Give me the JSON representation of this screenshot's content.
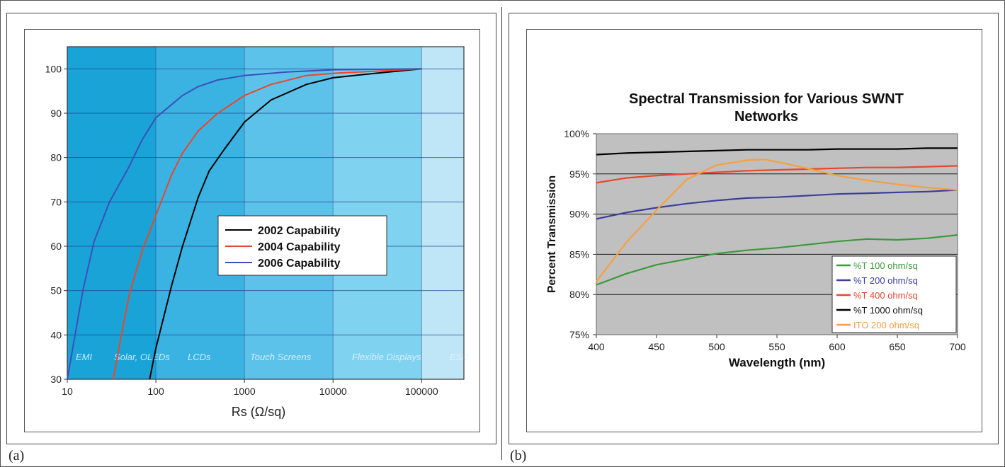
{
  "captions": {
    "a": "(a)",
    "b": "(b)"
  },
  "chart_data": [
    {
      "type": "line",
      "title": "",
      "xlabel": "Rs (Ω/sq)",
      "ylabel": "",
      "xscale": "log",
      "xlim": [
        10,
        300000
      ],
      "ylim": [
        30,
        105
      ],
      "xticks": [
        10,
        100,
        1000,
        10000,
        100000
      ],
      "xtick_labels": [
        "10",
        "100",
        "1000",
        "10000",
        "100000"
      ],
      "yticks": [
        30,
        40,
        50,
        60,
        70,
        80,
        90,
        100
      ],
      "ytick_labels": [
        "30",
        "40",
        "50",
        "60",
        "70",
        "80",
        "90",
        "100"
      ],
      "legend_position": "center",
      "bands": [
        {
          "label": "EMI",
          "from": 10,
          "to": 100,
          "color": "#1aa3d6"
        },
        {
          "label": "Solar, OLEDs",
          "from": 10,
          "to": 100,
          "color": "#1aa3d6"
        },
        {
          "label": "LCDs",
          "from": 100,
          "to": 1000,
          "color": "#3bb3e2"
        },
        {
          "label": "Touch Screens",
          "from": 1000,
          "to": 10000,
          "color": "#5cc2ea"
        },
        {
          "label": "Flexible Displays",
          "from": 10000,
          "to": 100000,
          "color": "#80d2f1"
        },
        {
          "label": "ESD",
          "from": 100000,
          "to": 300000,
          "color": "#bfe6f6"
        }
      ],
      "series": [
        {
          "name": "2002 Capability",
          "color": "#000000",
          "x": [
            85,
            100,
            150,
            200,
            300,
            400,
            600,
            1000,
            2000,
            5000,
            10000,
            30000,
            100000
          ],
          "y": [
            30,
            37,
            51,
            60,
            71,
            77,
            82,
            88,
            93,
            96.5,
            98,
            99,
            100
          ]
        },
        {
          "name": "2004 Capability",
          "color": "#e8472c",
          "x": [
            33,
            40,
            50,
            70,
            100,
            150,
            200,
            300,
            500,
            1000,
            2000,
            5000,
            10000,
            100000
          ],
          "y": [
            30,
            39,
            49,
            59,
            67,
            76,
            81,
            86,
            90,
            94,
            96.5,
            98.5,
            99,
            100
          ]
        },
        {
          "name": "2006 Capability",
          "color": "#3d4fb8",
          "x": [
            10,
            15,
            20,
            30,
            50,
            70,
            100,
            200,
            300,
            500,
            1000,
            3000,
            10000,
            100000
          ],
          "y": [
            30,
            50,
            61,
            70,
            78,
            84,
            89,
            94,
            96,
            97.5,
            98.5,
            99.3,
            99.8,
            100
          ]
        }
      ]
    },
    {
      "type": "line",
      "title": "Spectral Transmission for Various SWNT Networks",
      "title_lines": [
        "Spectral Transmission for Various SWNT",
        "Networks"
      ],
      "xlabel": "Wavelength (nm)",
      "ylabel": "Percent Transmission",
      "xlim": [
        400,
        700
      ],
      "ylim": [
        75,
        100
      ],
      "xticks": [
        400,
        450,
        500,
        550,
        600,
        650,
        700
      ],
      "xtick_labels": [
        "400",
        "450",
        "500",
        "550",
        "600",
        "650",
        "700"
      ],
      "yticks": [
        75,
        80,
        85,
        90,
        95,
        100
      ],
      "ytick_labels": [
        "75%",
        "80%",
        "85%",
        "90%",
        "95%",
        "100%"
      ],
      "grid": true,
      "legend_position": "bottom-right",
      "series": [
        {
          "name": "%T 100 ohm/sq",
          "color": "#3a9a3a",
          "x": [
            400,
            425,
            450,
            475,
            500,
            525,
            550,
            575,
            600,
            625,
            650,
            675,
            700
          ],
          "y": [
            81.2,
            82.6,
            83.7,
            84.4,
            85.1,
            85.5,
            85.8,
            86.2,
            86.6,
            86.9,
            86.8,
            87.0,
            87.4
          ]
        },
        {
          "name": "%T 200 ohm/sq",
          "color": "#3d3d9e",
          "x": [
            400,
            425,
            450,
            475,
            500,
            525,
            550,
            575,
            600,
            625,
            650,
            675,
            700
          ],
          "y": [
            89.4,
            90.2,
            90.8,
            91.3,
            91.7,
            92.0,
            92.1,
            92.3,
            92.5,
            92.6,
            92.7,
            92.8,
            93.0
          ]
        },
        {
          "name": "%T 400 ohm/sq",
          "color": "#e8472c",
          "x": [
            400,
            425,
            450,
            475,
            500,
            525,
            550,
            575,
            600,
            625,
            650,
            675,
            700
          ],
          "y": [
            93.9,
            94.5,
            94.8,
            95.0,
            95.2,
            95.4,
            95.5,
            95.6,
            95.7,
            95.8,
            95.8,
            95.9,
            96.0
          ]
        },
        {
          "name": "%T 1000 ohm/sq",
          "color": "#000000",
          "x": [
            400,
            425,
            450,
            475,
            500,
            525,
            550,
            575,
            600,
            625,
            650,
            675,
            700
          ],
          "y": [
            97.4,
            97.6,
            97.7,
            97.8,
            97.9,
            98.0,
            98.0,
            98.0,
            98.1,
            98.1,
            98.1,
            98.2,
            98.2
          ]
        },
        {
          "name": "ITO 200 ohm/sq",
          "color": "#f5a040",
          "x": [
            400,
            425,
            450,
            475,
            500,
            525,
            540,
            560,
            580,
            600,
            625,
            650,
            675,
            700
          ],
          "y": [
            81.6,
            86.5,
            90.5,
            94.3,
            96.1,
            96.7,
            96.8,
            96.2,
            95.5,
            94.8,
            94.2,
            93.7,
            93.3,
            93.0
          ]
        }
      ]
    }
  ]
}
